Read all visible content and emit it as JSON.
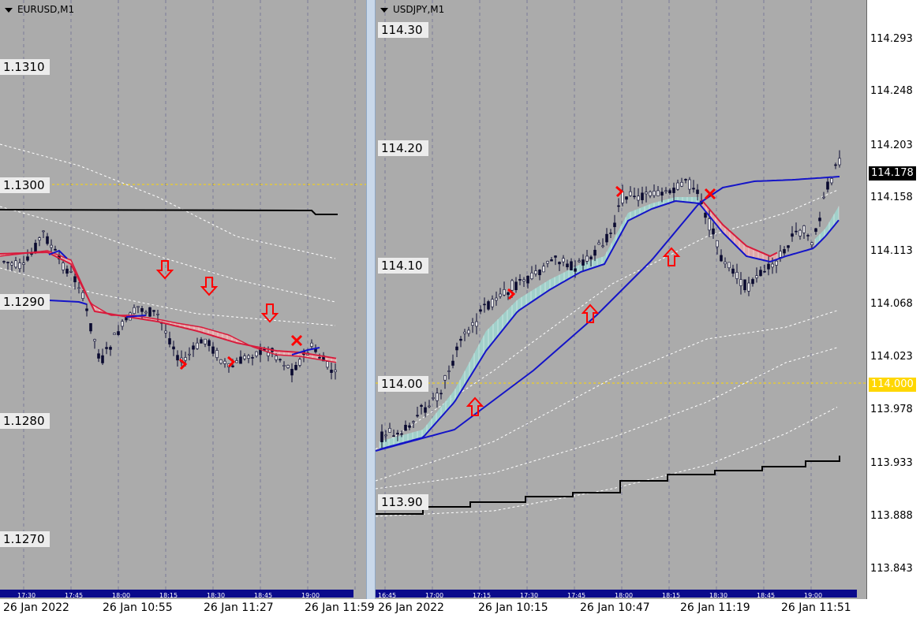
{
  "panels": [
    {
      "id": "eurusd",
      "title": "EURUSD,M1",
      "price_labels": [
        "1.1310",
        "1.1300",
        "1.1290",
        "1.1280",
        "1.1270"
      ],
      "mini_ticks": [
        "17:30",
        "17:45",
        "18:00",
        "18:15",
        "18:30",
        "18:45",
        "19:00"
      ],
      "bottom_labels": [
        "26 Jan 2022",
        "26 Jan 10:55",
        "26 Jan 11:27",
        "26 Jan 11:59"
      ]
    },
    {
      "id": "usdjpy",
      "title": "USDJPY,M1",
      "price_labels": [
        "114.30",
        "114.20",
        "114.10",
        "114.00",
        "113.90"
      ],
      "axis_labels": [
        "114.293",
        "114.248",
        "114.203",
        "114.158",
        "114.113",
        "114.068",
        "114.023",
        "113.978",
        "113.933",
        "113.888",
        "113.843"
      ],
      "current_price": "114.178",
      "line_price": "114.000",
      "mini_ticks": [
        "16:45",
        "17:00",
        "17:15",
        "17:30",
        "17:45",
        "18:00",
        "18:15",
        "18:30",
        "18:45",
        "19:00"
      ],
      "bottom_labels": [
        "26 Jan 2022",
        "26 Jan 10:15",
        "26 Jan 10:47",
        "26 Jan 11:19",
        "26 Jan 11:51"
      ]
    }
  ],
  "colors": {
    "background": "#ababab",
    "axis_bg": "#ffffff",
    "bullish_fill": "#9fd6cf",
    "bearish_fill": "#e6a8a8",
    "ema_fast": "#d81b3c",
    "ema_slow": "#1414c8",
    "price_line": "#ffd700",
    "arrow": "#ff0000",
    "current_price_bg": "#000000",
    "line_price_bg": "#ffd700"
  }
}
